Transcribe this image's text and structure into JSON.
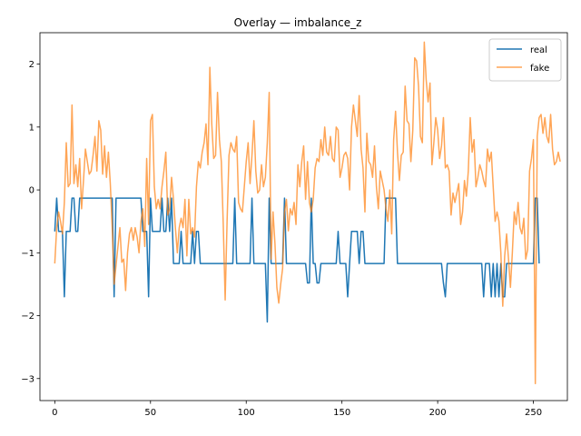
{
  "chart_data": {
    "type": "line",
    "title": "Overlay — imbalance_z",
    "xlabel": "",
    "ylabel": "",
    "xlim": [
      -7.75,
      267.75
    ],
    "ylim": [
      -3.35,
      2.5
    ],
    "x_ticks": [
      0,
      50,
      100,
      150,
      200,
      250
    ],
    "y_ticks": [
      -3,
      -2,
      -1,
      0,
      1,
      2
    ],
    "grid": false,
    "legend_position": "top-right",
    "series": [
      {
        "name": "real",
        "color": "#1f77b4",
        "x_start": 0,
        "values": [
          -0.66,
          -0.13,
          -0.66,
          -0.66,
          -0.66,
          -1.7,
          -0.66,
          -0.66,
          -0.66,
          -0.13,
          -0.13,
          -0.66,
          -0.66,
          -0.13,
          -0.13,
          -0.13,
          -0.13,
          -0.13,
          -0.13,
          -0.13,
          -0.13,
          -0.13,
          -0.13,
          -0.13,
          -0.13,
          -0.13,
          -0.13,
          -0.13,
          -0.13,
          -0.13,
          -0.13,
          -1.7,
          -0.13,
          -0.13,
          -0.13,
          -0.13,
          -0.13,
          -0.13,
          -0.13,
          -0.13,
          -0.13,
          -0.13,
          -0.13,
          -0.13,
          -0.13,
          -0.13,
          -0.66,
          -0.66,
          -0.66,
          -1.7,
          -0.13,
          -0.66,
          -0.66,
          -0.66,
          -0.66,
          -0.66,
          -0.13,
          -0.66,
          -0.66,
          -0.13,
          -0.66,
          -0.13,
          -1.17,
          -1.17,
          -1.17,
          -1.17,
          -0.66,
          -1.17,
          -1.17,
          -1.17,
          -1.17,
          -1.17,
          -0.66,
          -1.17,
          -0.66,
          -0.66,
          -1.17,
          -1.17,
          -1.17,
          -1.17,
          -1.17,
          -1.17,
          -1.17,
          -1.17,
          -1.17,
          -1.17,
          -1.17,
          -1.17,
          -1.17,
          -1.17,
          -1.17,
          -1.17,
          -1.17,
          -1.17,
          -0.13,
          -1.17,
          -1.17,
          -1.17,
          -1.17,
          -1.17,
          -1.17,
          -1.17,
          -1.17,
          -0.13,
          -1.17,
          -1.17,
          -1.17,
          -1.17,
          -1.17,
          -1.17,
          -1.17,
          -2.1,
          -0.13,
          -1.17,
          -1.17,
          -1.17,
          -1.17,
          -1.17,
          -1.17,
          -1.17,
          -0.13,
          -1.17,
          -1.17,
          -1.17,
          -1.17,
          -1.17,
          -1.17,
          -1.17,
          -1.17,
          -1.17,
          -1.17,
          -1.17,
          -1.48,
          -1.48,
          -0.13,
          -1.17,
          -1.17,
          -1.48,
          -1.48,
          -1.17,
          -1.17,
          -1.17,
          -1.17,
          -1.17,
          -1.17,
          -1.17,
          -1.17,
          -1.17,
          -0.66,
          -1.17,
          -1.17,
          -1.17,
          -1.17,
          -1.7,
          -1.17,
          -0.66,
          -0.66,
          -0.66,
          -0.66,
          -1.17,
          -0.66,
          -0.66,
          -1.17,
          -1.17,
          -1.17,
          -1.17,
          -1.17,
          -1.17,
          -1.17,
          -1.17,
          -1.17,
          -1.17,
          -1.17,
          -0.13,
          -0.13,
          -0.13,
          -0.13,
          -0.13,
          -0.13,
          -1.17,
          -1.17,
          -1.17,
          -1.17,
          -1.17,
          -1.17,
          -1.17,
          -1.17,
          -1.17,
          -1.17,
          -1.17,
          -1.17,
          -1.17,
          -1.17,
          -1.17,
          -1.17,
          -1.17,
          -1.17,
          -1.17,
          -1.17,
          -1.17,
          -1.17,
          -1.17,
          -1.17,
          -1.48,
          -1.7,
          -1.17,
          -1.17,
          -1.17,
          -1.17,
          -1.17,
          -1.17,
          -1.17,
          -1.17,
          -1.17,
          -1.17,
          -1.17,
          -1.17,
          -1.17,
          -1.17,
          -1.17,
          -1.17,
          -1.17,
          -1.17,
          -1.17,
          -1.7,
          -1.17,
          -1.17,
          -1.17,
          -1.7,
          -1.17,
          -1.7,
          -1.17,
          -1.7,
          -1.17,
          -1.7,
          -1.7,
          -1.17,
          -1.17,
          -1.17,
          -1.17,
          -1.17,
          -1.17,
          -1.17,
          -1.17,
          -1.17,
          -1.17,
          -1.17,
          -1.17,
          -1.17,
          -1.17,
          -1.17,
          -0.13,
          -0.13,
          -1.17
        ]
      },
      {
        "name": "fake",
        "color": "#ff7f0e",
        "x_start": 0,
        "values": [
          -1.17,
          -0.6,
          -0.35,
          -0.5,
          -0.7,
          -0.2,
          0.75,
          0.05,
          0.1,
          1.35,
          0.1,
          0.4,
          0.05,
          0.5,
          -0.3,
          0.15,
          0.65,
          0.45,
          0.25,
          0.3,
          0.55,
          0.85,
          0.3,
          1.1,
          0.95,
          0.25,
          0.7,
          0.2,
          0.6,
          0.1,
          -0.6,
          -1.5,
          -1.2,
          -0.9,
          -0.6,
          -1.15,
          -1.1,
          -1.6,
          -1.0,
          -0.7,
          -0.6,
          -0.8,
          -0.6,
          -0.75,
          -1.0,
          -0.5,
          -0.3,
          -0.9,
          0.5,
          -0.55,
          1.1,
          1.2,
          0.05,
          -0.3,
          -0.15,
          -0.3,
          0.05,
          0.3,
          0.6,
          -0.4,
          -0.3,
          0.2,
          -0.15,
          -0.6,
          -1.0,
          -0.6,
          -0.45,
          -0.6,
          -0.15,
          -1.05,
          -0.15,
          -0.7,
          -0.6,
          -0.75,
          0.05,
          0.45,
          0.35,
          0.6,
          0.75,
          1.05,
          0.4,
          1.95,
          1.05,
          0.5,
          0.55,
          1.55,
          0.8,
          0.45,
          -0.55,
          -1.75,
          -0.5,
          0.55,
          0.75,
          0.65,
          0.6,
          0.85,
          -0.2,
          -0.3,
          -0.35,
          0.05,
          0.45,
          0.75,
          0.1,
          0.55,
          1.1,
          0.3,
          -0.05,
          0.0,
          0.4,
          0.05,
          0.2,
          0.75,
          1.55,
          -1.1,
          -0.35,
          -0.85,
          -1.55,
          -1.8,
          -1.5,
          -1.25,
          -0.35,
          -0.15,
          -0.65,
          -0.3,
          -0.4,
          -0.2,
          -0.55,
          0.4,
          0.05,
          0.45,
          0.7,
          -0.15,
          0.45,
          -0.2,
          -0.35,
          -0.15,
          0.35,
          0.5,
          0.45,
          0.8,
          0.55,
          1.0,
          0.6,
          0.55,
          0.85,
          0.5,
          0.45,
          1.0,
          0.95,
          0.2,
          0.35,
          0.55,
          0.6,
          0.5,
          0.0,
          1.0,
          1.35,
          1.1,
          0.85,
          1.5,
          0.65,
          0.35,
          -0.35,
          0.9,
          0.45,
          0.4,
          0.2,
          0.7,
          0.05,
          -0.3,
          0.3,
          0.15,
          0.0,
          -0.3,
          -0.5,
          0.0,
          -0.7,
          0.8,
          1.25,
          0.6,
          0.15,
          0.55,
          0.6,
          1.65,
          1.1,
          1.05,
          0.45,
          0.95,
          2.1,
          2.05,
          1.65,
          0.85,
          0.75,
          2.35,
          1.75,
          1.4,
          1.7,
          0.4,
          0.75,
          1.15,
          0.95,
          0.5,
          0.7,
          1.15,
          0.35,
          0.4,
          0.3,
          -0.4,
          -0.05,
          -0.2,
          -0.05,
          0.1,
          -0.55,
          -0.35,
          0.15,
          -0.1,
          0.3,
          1.15,
          0.6,
          0.8,
          0.05,
          0.2,
          0.4,
          0.3,
          0.15,
          0.05,
          0.65,
          0.45,
          0.6,
          0.05,
          -0.5,
          -0.35,
          -0.5,
          -1.0,
          -1.85,
          -1.05,
          -0.7,
          -1.1,
          -1.55,
          -1.0,
          -0.35,
          -0.55,
          -0.2,
          -0.6,
          -0.7,
          -0.45,
          -1.1,
          -0.95,
          0.3,
          0.5,
          0.8,
          -3.08,
          0.85,
          1.15,
          1.2,
          0.9,
          1.15,
          0.85,
          0.75,
          1.2,
          0.65,
          0.4,
          0.45,
          0.6,
          0.45
        ]
      }
    ]
  }
}
